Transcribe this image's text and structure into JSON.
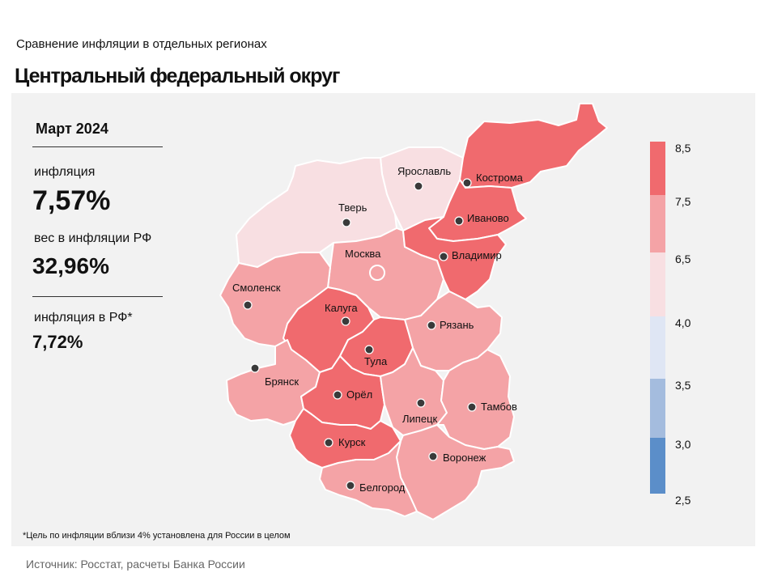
{
  "header": {
    "subtitle": "Сравнение  инфляции  в отдельных  регионах",
    "title": "Центральный федеральный округ"
  },
  "stats": {
    "period": "Март 2024",
    "inflation_label": "инфляция",
    "inflation_value": "7,57%",
    "weight_label": "вес в инфляции  РФ",
    "weight_value": "32,96%",
    "rf_label": "инфляция  в РФ*",
    "rf_value": "7,72%"
  },
  "footnote": "*Цель по инфляции вблизи 4% установлена для России в целом",
  "source": "Источник: Росстат, расчеты Банка России",
  "legend": {
    "ticks": [
      "8,5",
      "7,5",
      "6,5",
      "4,0",
      "3,5",
      "3,0",
      "2,5"
    ],
    "colors": [
      "#f06a6e",
      "#f4a3a6",
      "#f8dfe2",
      "#dfe6f4",
      "#a4bcde",
      "#5b8ec9"
    ]
  },
  "colors": {
    "high": "#f06a6e",
    "mid": "#f4a3a6",
    "low": "#f8dfe2",
    "border": "#ffffff",
    "city_dot": "#3a3a3a"
  },
  "regions": [
    {
      "name": "Ярославль",
      "tier": "low"
    },
    {
      "name": "Кострома",
      "tier": "high"
    },
    {
      "name": "Тверь",
      "tier": "low"
    },
    {
      "name": "Иваново",
      "tier": "high"
    },
    {
      "name": "Москва",
      "tier": "mid"
    },
    {
      "name": "Владимир",
      "tier": "high"
    },
    {
      "name": "Смоленск",
      "tier": "mid"
    },
    {
      "name": "Калуга",
      "tier": "high"
    },
    {
      "name": "Рязань",
      "tier": "mid"
    },
    {
      "name": "Тула",
      "tier": "high"
    },
    {
      "name": "Брянск",
      "tier": "mid"
    },
    {
      "name": "Орёл",
      "tier": "high"
    },
    {
      "name": "Липецк",
      "tier": "mid"
    },
    {
      "name": "Тамбов",
      "tier": "mid"
    },
    {
      "name": "Курск",
      "tier": "high"
    },
    {
      "name": "Воронеж",
      "tier": "mid"
    },
    {
      "name": "Белгород",
      "tier": "mid"
    }
  ]
}
